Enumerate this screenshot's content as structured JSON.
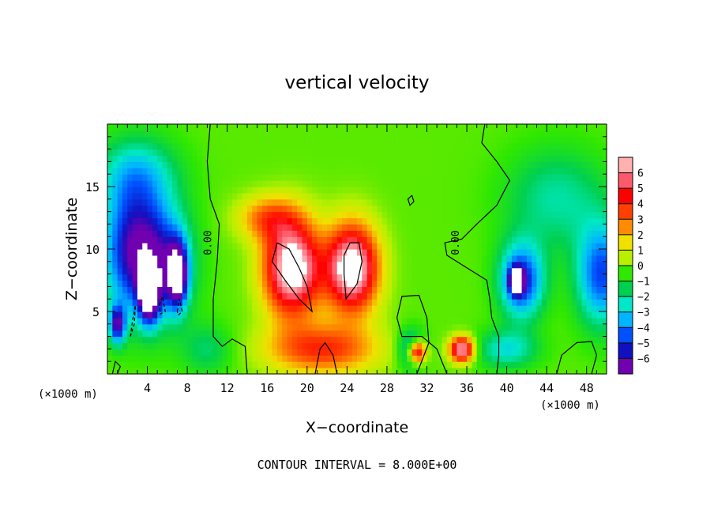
{
  "chart_data": {
    "type": "heatmap",
    "title": "vertical velocity",
    "xlabel": "X−coordinate",
    "ylabel": "Z−coordinate",
    "x_unit": "(×1000 m)",
    "x_unit_right": "(×1000 m)",
    "xlim": [
      0,
      50
    ],
    "ylim": [
      0,
      20
    ],
    "x_ticks": [
      4,
      8,
      12,
      16,
      20,
      24,
      28,
      32,
      36,
      40,
      44,
      48
    ],
    "y_ticks": [
      5,
      10,
      15
    ],
    "contour_label": "0.00",
    "footer": "CONTOUR INTERVAL = 8.000E+00",
    "colorbar": {
      "levels": [
        "6",
        "5",
        "4",
        "3",
        "2",
        "1",
        "0",
        "−1",
        "−2",
        "−3",
        "−4",
        "−5",
        "−6"
      ],
      "colors": [
        "#ff5a6b",
        "#ff0000",
        "#ff4000",
        "#ff8c00",
        "#f0e000",
        "#b8f000",
        "#30e800",
        "#00d050",
        "#00e8c8",
        "#00b4ff",
        "#0050ff",
        "#1010c0",
        "#7000b0"
      ],
      "top_color": "#ffb0b0"
    },
    "field": {
      "background_value": 0.3,
      "blobs": [
        {
          "x": 2.5,
          "z": 10,
          "sx": 3.0,
          "sz": 5.0,
          "v": -5.2
        },
        {
          "x": 5.5,
          "z": 9,
          "sx": 3.0,
          "sz": 4.5,
          "v": -4.0
        },
        {
          "x": 4.2,
          "z": 6.5,
          "sx": 1.0,
          "sz": 2.2,
          "v": -7.5
        },
        {
          "x": 7.0,
          "z": 8.0,
          "sx": 1.0,
          "sz": 2.5,
          "v": -7.0
        },
        {
          "x": 1.0,
          "z": 4.0,
          "sx": 0.8,
          "sz": 1.5,
          "v": -5.5
        },
        {
          "x": 3.0,
          "z": 16,
          "sx": 4.0,
          "sz": 3.0,
          "v": -2.5
        },
        {
          "x": 18.5,
          "z": 8.5,
          "sx": 2.8,
          "sz": 3.8,
          "v": 8.0
        },
        {
          "x": 24.5,
          "z": 8.5,
          "sx": 2.6,
          "sz": 3.5,
          "v": 8.0
        },
        {
          "x": 21.5,
          "z": 2.0,
          "sx": 5.5,
          "sz": 2.0,
          "v": 4.0
        },
        {
          "x": 16.0,
          "z": 12.5,
          "sx": 3.0,
          "sz": 1.8,
          "v": 3.0
        },
        {
          "x": 31.0,
          "z": 1.8,
          "sx": 0.9,
          "sz": 0.9,
          "v": 7.0
        },
        {
          "x": 35.5,
          "z": 2.0,
          "sx": 1.2,
          "sz": 1.0,
          "v": 7.0
        },
        {
          "x": 41.5,
          "z": 7.5,
          "sx": 2.2,
          "sz": 3.0,
          "v": -5.0
        },
        {
          "x": 41.0,
          "z": 7.5,
          "sx": 0.7,
          "sz": 1.0,
          "v": -7.0
        },
        {
          "x": 49.5,
          "z": 8.0,
          "sx": 2.5,
          "sz": 4.0,
          "v": -4.5
        },
        {
          "x": 45.0,
          "z": 14.0,
          "sx": 5.0,
          "sz": 4.0,
          "v": -2.0
        },
        {
          "x": 30.5,
          "z": 2.0,
          "sx": 1.3,
          "sz": 1.5,
          "v": -3.5
        },
        {
          "x": 40.0,
          "z": 2.0,
          "sx": 3.0,
          "sz": 1.5,
          "v": -2.5
        },
        {
          "x": 10.0,
          "z": 2.0,
          "sx": 2.5,
          "sz": 2.0,
          "v": -1.5
        }
      ]
    },
    "contours": [
      {
        "style": "solid",
        "points": [
          [
            10.3,
            20
          ],
          [
            10.0,
            17
          ],
          [
            10.3,
            14
          ],
          [
            11.2,
            12
          ],
          [
            11.0,
            9
          ],
          [
            10.6,
            6
          ],
          [
            10.6,
            3
          ],
          [
            11.5,
            2.2
          ],
          [
            12.5,
            2.8
          ],
          [
            13.8,
            2.2
          ],
          [
            14.0,
            0
          ]
        ]
      },
      {
        "style": "solid",
        "points": [
          [
            37.8,
            20
          ],
          [
            37.5,
            18.5
          ],
          [
            39.0,
            17.0
          ],
          [
            40.3,
            15.5
          ],
          [
            39.0,
            13.5
          ],
          [
            37.0,
            12.0
          ],
          [
            35.5,
            10.8
          ],
          [
            33.8,
            10.5
          ],
          [
            34.0,
            9.5
          ],
          [
            36.0,
            8.5
          ],
          [
            38.0,
            7.5
          ],
          [
            38.3,
            6.0
          ],
          [
            38.5,
            4.5
          ],
          [
            39.2,
            3.0
          ],
          [
            39.2,
            1.5
          ],
          [
            39.0,
            0
          ]
        ]
      },
      {
        "style": "solid",
        "points": [
          [
            34.0,
            0
          ],
          [
            33.0,
            2.0
          ],
          [
            31.5,
            3.0
          ],
          [
            29.5,
            3.0
          ],
          [
            29.0,
            4.5
          ],
          [
            29.5,
            6.2
          ],
          [
            31.2,
            6.3
          ],
          [
            32.0,
            4.5
          ],
          [
            32.2,
            2.5
          ],
          [
            31.0,
            0
          ]
        ]
      },
      {
        "style": "solid",
        "points": [
          [
            17.0,
            10.5
          ],
          [
            16.5,
            9.0
          ],
          [
            17.8,
            7.5
          ],
          [
            19.2,
            6.0
          ],
          [
            20.5,
            5.0
          ],
          [
            20.0,
            7.0
          ],
          [
            19.2,
            8.5
          ],
          [
            18.2,
            10.0
          ],
          [
            17.0,
            10.5
          ]
        ]
      },
      {
        "style": "solid",
        "points": [
          [
            23.7,
            9.5
          ],
          [
            23.7,
            8.0
          ],
          [
            23.9,
            6.0
          ],
          [
            25.0,
            7.2
          ],
          [
            25.5,
            9.0
          ],
          [
            25.2,
            10.5
          ],
          [
            24.3,
            10.5
          ],
          [
            23.7,
            9.5
          ]
        ]
      },
      {
        "style": "solid",
        "points": [
          [
            20.8,
            0
          ],
          [
            21.3,
            2.0
          ],
          [
            21.8,
            2.5
          ],
          [
            22.6,
            1.5
          ],
          [
            23.0,
            0
          ]
        ]
      },
      {
        "style": "solid",
        "points": [
          [
            30.5,
            14.3
          ],
          [
            30.1,
            14.0
          ],
          [
            30.3,
            13.5
          ],
          [
            30.7,
            13.8
          ],
          [
            30.5,
            14.3
          ]
        ]
      },
      {
        "style": "solid",
        "points": [
          [
            45.0,
            0
          ],
          [
            45.5,
            1.5
          ],
          [
            47.0,
            2.5
          ],
          [
            48.5,
            2.6
          ],
          [
            49.0,
            1.5
          ],
          [
            48.5,
            0
          ]
        ]
      },
      {
        "style": "solid",
        "points": [
          [
            0.5,
            0
          ],
          [
            0.8,
            1.0
          ],
          [
            1.3,
            0.6
          ],
          [
            1.0,
            0
          ]
        ]
      },
      {
        "style": "dashed",
        "points": [
          [
            2.3,
            3.0
          ],
          [
            2.5,
            4.2
          ],
          [
            2.8,
            5.5
          ],
          [
            2.7,
            4.0
          ],
          [
            2.3,
            3.0
          ]
        ]
      },
      {
        "style": "dashed",
        "points": [
          [
            5.2,
            5.5
          ],
          [
            5.5,
            6.2
          ],
          [
            5.8,
            5.0
          ],
          [
            5.3,
            4.8
          ],
          [
            5.2,
            5.5
          ]
        ]
      },
      {
        "style": "dashed",
        "points": [
          [
            7.0,
            5.0
          ],
          [
            7.2,
            6.0
          ],
          [
            7.5,
            5.0
          ],
          [
            7.1,
            4.7
          ],
          [
            7.0,
            5.0
          ]
        ]
      }
    ]
  }
}
